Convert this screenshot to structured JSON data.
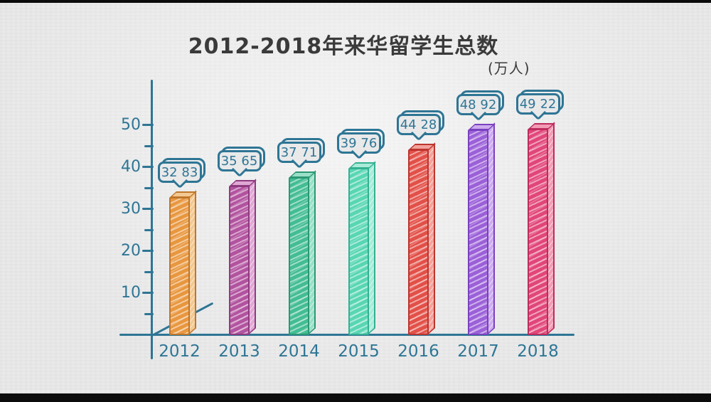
{
  "frame": {
    "letterbox_color": "#0b0b0b",
    "paper_color": "#E9E9EA"
  },
  "chart_data": {
    "type": "bar",
    "title": "2012-2018年来华留学生总数",
    "unit_label": "(万人)",
    "xlabel": "",
    "ylabel": "",
    "categories": [
      "2012",
      "2013",
      "2014",
      "2015",
      "2016",
      "2017",
      "2018"
    ],
    "values": [
      32.83,
      35.65,
      37.71,
      39.76,
      44.28,
      48.92,
      49.22
    ],
    "value_labels": [
      "32.83",
      "35.65",
      "37.71",
      "39.76",
      "44.28",
      "48.92",
      "49.22"
    ],
    "ylim": [
      0,
      55
    ],
    "yticks": [
      10,
      20,
      30,
      40,
      50
    ],
    "ytick_step_minor": 5,
    "grid": false,
    "legend": null,
    "style": "hand-drawn sketch, 3d bars with speech-bubble value callouts",
    "axis_color": "#2E7594",
    "title_color": "#3A3A3A",
    "bar_colors": [
      {
        "front": "#E8973F",
        "side": "#F3C992",
        "outline": "#C0762A"
      },
      {
        "front": "#B2539F",
        "side": "#DFA8D4",
        "outline": "#8F3A7F"
      },
      {
        "front": "#43BD93",
        "side": "#9ADFC8",
        "outline": "#2C9873"
      },
      {
        "front": "#58D6B4",
        "side": "#A9EBD9",
        "outline": "#35B091"
      },
      {
        "front": "#E25048",
        "side": "#F2A29A",
        "outline": "#BC352F"
      },
      {
        "front": "#9B60D8",
        "side": "#CDABEF",
        "outline": "#7A41BE"
      },
      {
        "front": "#E14679",
        "side": "#F29BB5",
        "outline": "#BE2C5D"
      }
    ]
  }
}
